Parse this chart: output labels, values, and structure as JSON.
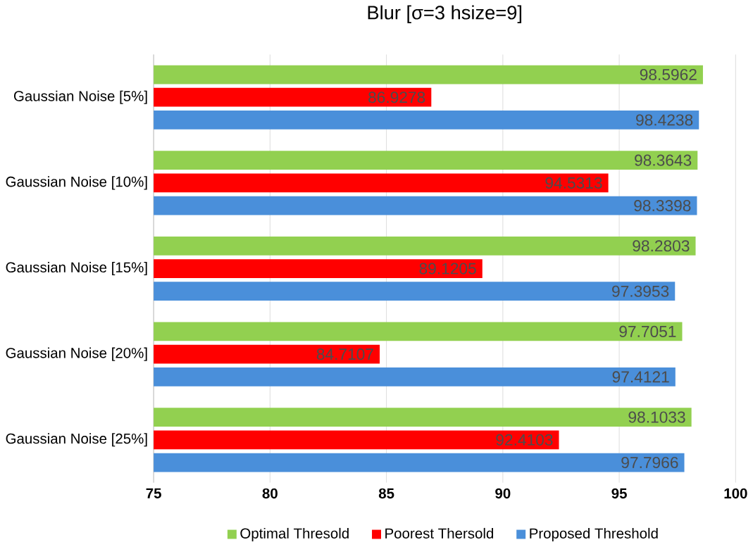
{
  "chart_data": {
    "type": "bar",
    "orientation": "horizontal",
    "title": "Blur [σ=3 hsize=9]",
    "categories": [
      "Gaussian Noise [5%]",
      "Gaussian Noise [10%]",
      "Gaussian Noise [15%]",
      "Gaussian Noise [20%]",
      "Gaussian Noise [25%]"
    ],
    "series": [
      {
        "name": "Optimal Thresold",
        "color": "#92d050",
        "values": [
          98.5962,
          98.3643,
          98.2803,
          97.7051,
          98.1033
        ]
      },
      {
        "name": "Poorest Thersold",
        "color": "#ff0000",
        "values": [
          86.9278,
          94.5313,
          89.1205,
          84.7107,
          92.4103
        ]
      },
      {
        "name": "Proposed Threshold",
        "color": "#4a8fda",
        "values": [
          98.4238,
          98.3398,
          97.3953,
          97.4121,
          97.7966
        ]
      }
    ],
    "xlim": [
      75,
      100
    ],
    "xticks": [
      75,
      80,
      85,
      90,
      95,
      100
    ],
    "grid": "x",
    "legend": "bottom",
    "data_labels": true
  }
}
